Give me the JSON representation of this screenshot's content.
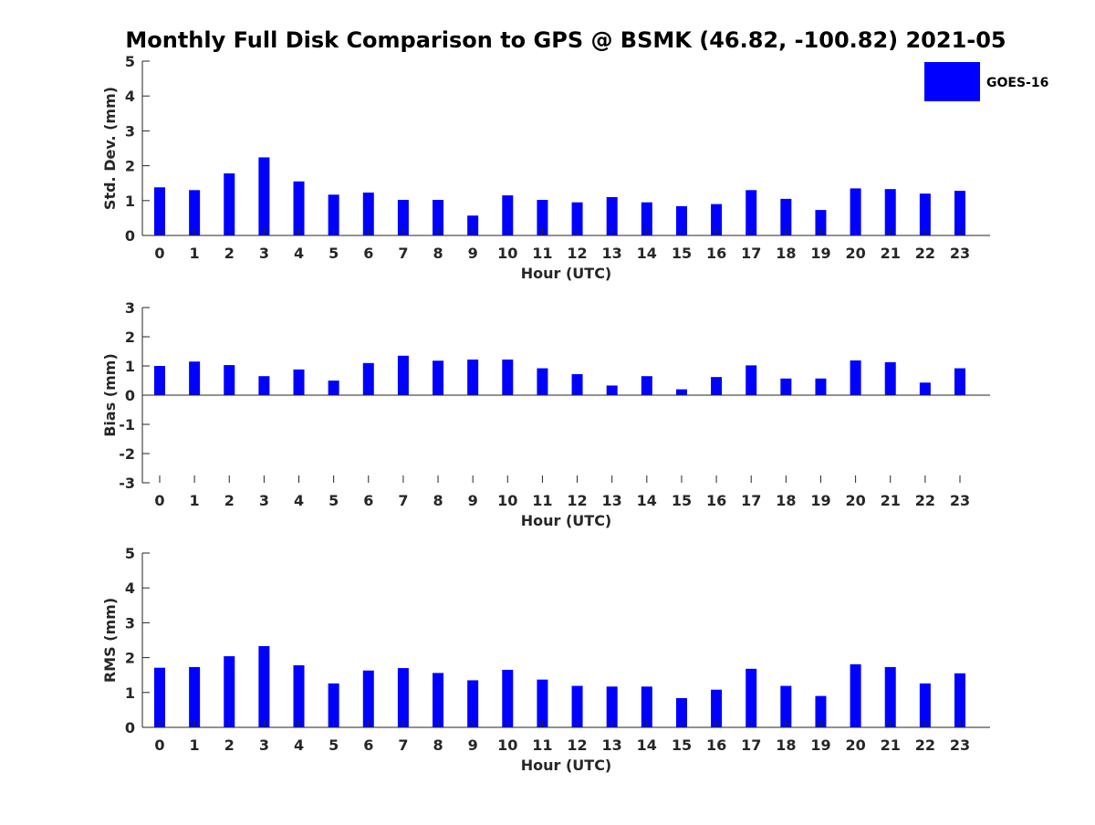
{
  "title": "Monthly Full Disk Comparison to GPS @ BSMK (46.82, -100.82) 2021-05",
  "legend": {
    "label": "GOES-16",
    "color": "#0000FF"
  },
  "chart_data": [
    {
      "type": "bar",
      "ylabel": "Std. Dev. (mm)",
      "xlabel": "Hour (UTC)",
      "ylim": [
        0,
        5
      ],
      "yticks": [
        0,
        1,
        2,
        3,
        4,
        5
      ],
      "categories": [
        "0",
        "1",
        "2",
        "3",
        "4",
        "5",
        "6",
        "7",
        "8",
        "9",
        "10",
        "11",
        "12",
        "13",
        "14",
        "15",
        "16",
        "17",
        "18",
        "19",
        "20",
        "21",
        "22",
        "23"
      ],
      "series": [
        {
          "name": "GOES-16",
          "color": "#0000FF",
          "values": [
            1.38,
            1.3,
            1.78,
            2.24,
            1.55,
            1.17,
            1.23,
            1.02,
            1.02,
            0.57,
            1.15,
            1.02,
            0.95,
            1.1,
            0.95,
            0.84,
            0.9,
            1.3,
            1.05,
            0.73,
            1.35,
            1.33,
            1.2,
            1.28
          ]
        }
      ],
      "legend_position": "top-right",
      "grid": false
    },
    {
      "type": "bar",
      "ylabel": "Bias (mm)",
      "xlabel": "Hour (UTC)",
      "ylim": [
        -3,
        3
      ],
      "yticks": [
        -3,
        -2,
        -1,
        0,
        1,
        2,
        3
      ],
      "categories": [
        "0",
        "1",
        "2",
        "3",
        "4",
        "5",
        "6",
        "7",
        "8",
        "9",
        "10",
        "11",
        "12",
        "13",
        "14",
        "15",
        "16",
        "17",
        "18",
        "19",
        "20",
        "21",
        "22",
        "23"
      ],
      "series": [
        {
          "name": "GOES-16",
          "color": "#0000FF",
          "values": [
            1.0,
            1.15,
            1.03,
            0.65,
            0.88,
            0.5,
            1.1,
            1.35,
            1.18,
            1.22,
            1.22,
            0.92,
            0.72,
            0.33,
            0.65,
            0.2,
            0.62,
            1.02,
            0.57,
            0.57,
            1.19,
            1.13,
            0.43,
            0.92
          ]
        }
      ],
      "grid": false
    },
    {
      "type": "bar",
      "ylabel": "RMS (mm)",
      "xlabel": "Hour (UTC)",
      "ylim": [
        0,
        5
      ],
      "yticks": [
        0,
        1,
        2,
        3,
        4,
        5
      ],
      "categories": [
        "0",
        "1",
        "2",
        "3",
        "4",
        "5",
        "6",
        "7",
        "8",
        "9",
        "10",
        "11",
        "12",
        "13",
        "14",
        "15",
        "16",
        "17",
        "18",
        "19",
        "20",
        "21",
        "22",
        "23"
      ],
      "series": [
        {
          "name": "GOES-16",
          "color": "#0000FF",
          "values": [
            1.71,
            1.73,
            2.04,
            2.33,
            1.78,
            1.26,
            1.63,
            1.7,
            1.56,
            1.35,
            1.65,
            1.37,
            1.19,
            1.17,
            1.17,
            0.84,
            1.08,
            1.68,
            1.19,
            0.9,
            1.81,
            1.73,
            1.26,
            1.55
          ]
        }
      ],
      "grid": false
    }
  ]
}
